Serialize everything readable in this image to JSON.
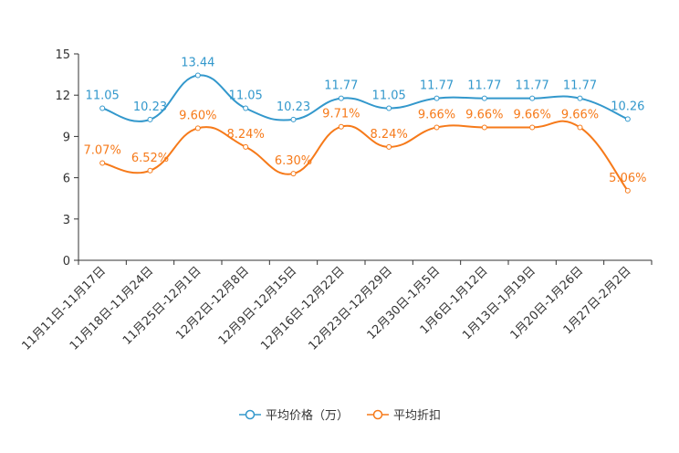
{
  "chart_data": {
    "type": "line",
    "categories": [
      "11月11日-11月17日",
      "11月18日-11月24日",
      "11月25日-12月1日",
      "12月2日-12月8日",
      "12月9日-12月15日",
      "12月16日-12月22日",
      "12月23日-12月29日",
      "12月30日-1月5日",
      "1月6日-1月12日",
      "1月13日-1月19日",
      "1月20日-1月26日",
      "1月27日-2月2日"
    ],
    "ylim": [
      0,
      15
    ],
    "yticks": [
      "0",
      "3",
      "6",
      "9",
      "12",
      "15"
    ],
    "series": [
      {
        "name": "平均价格（万）",
        "color": "#3398cc",
        "values": [
          11.05,
          10.23,
          13.44,
          11.05,
          10.23,
          11.77,
          11.05,
          11.77,
          11.77,
          11.77,
          11.77,
          10.26
        ],
        "labels": [
          "11.05",
          "10.23",
          "13.44",
          "11.05",
          "10.23",
          "11.77",
          "11.05",
          "11.77",
          "11.77",
          "11.77",
          "11.77",
          "10.26"
        ]
      },
      {
        "name": "平均折扣",
        "color": "#f67a1a",
        "values": [
          7.07,
          6.52,
          9.6,
          8.24,
          6.3,
          9.71,
          8.24,
          9.66,
          9.66,
          9.66,
          9.66,
          5.06
        ],
        "labels": [
          "7.07%",
          "6.52%",
          "9.60%",
          "8.24%",
          "6.30%",
          "9.71%",
          "8.24%",
          "9.66%",
          "9.66%",
          "9.66%",
          "9.66%",
          "5.06%"
        ]
      }
    ],
    "legend": [
      "平均价格（万）",
      "平均折扣"
    ]
  }
}
